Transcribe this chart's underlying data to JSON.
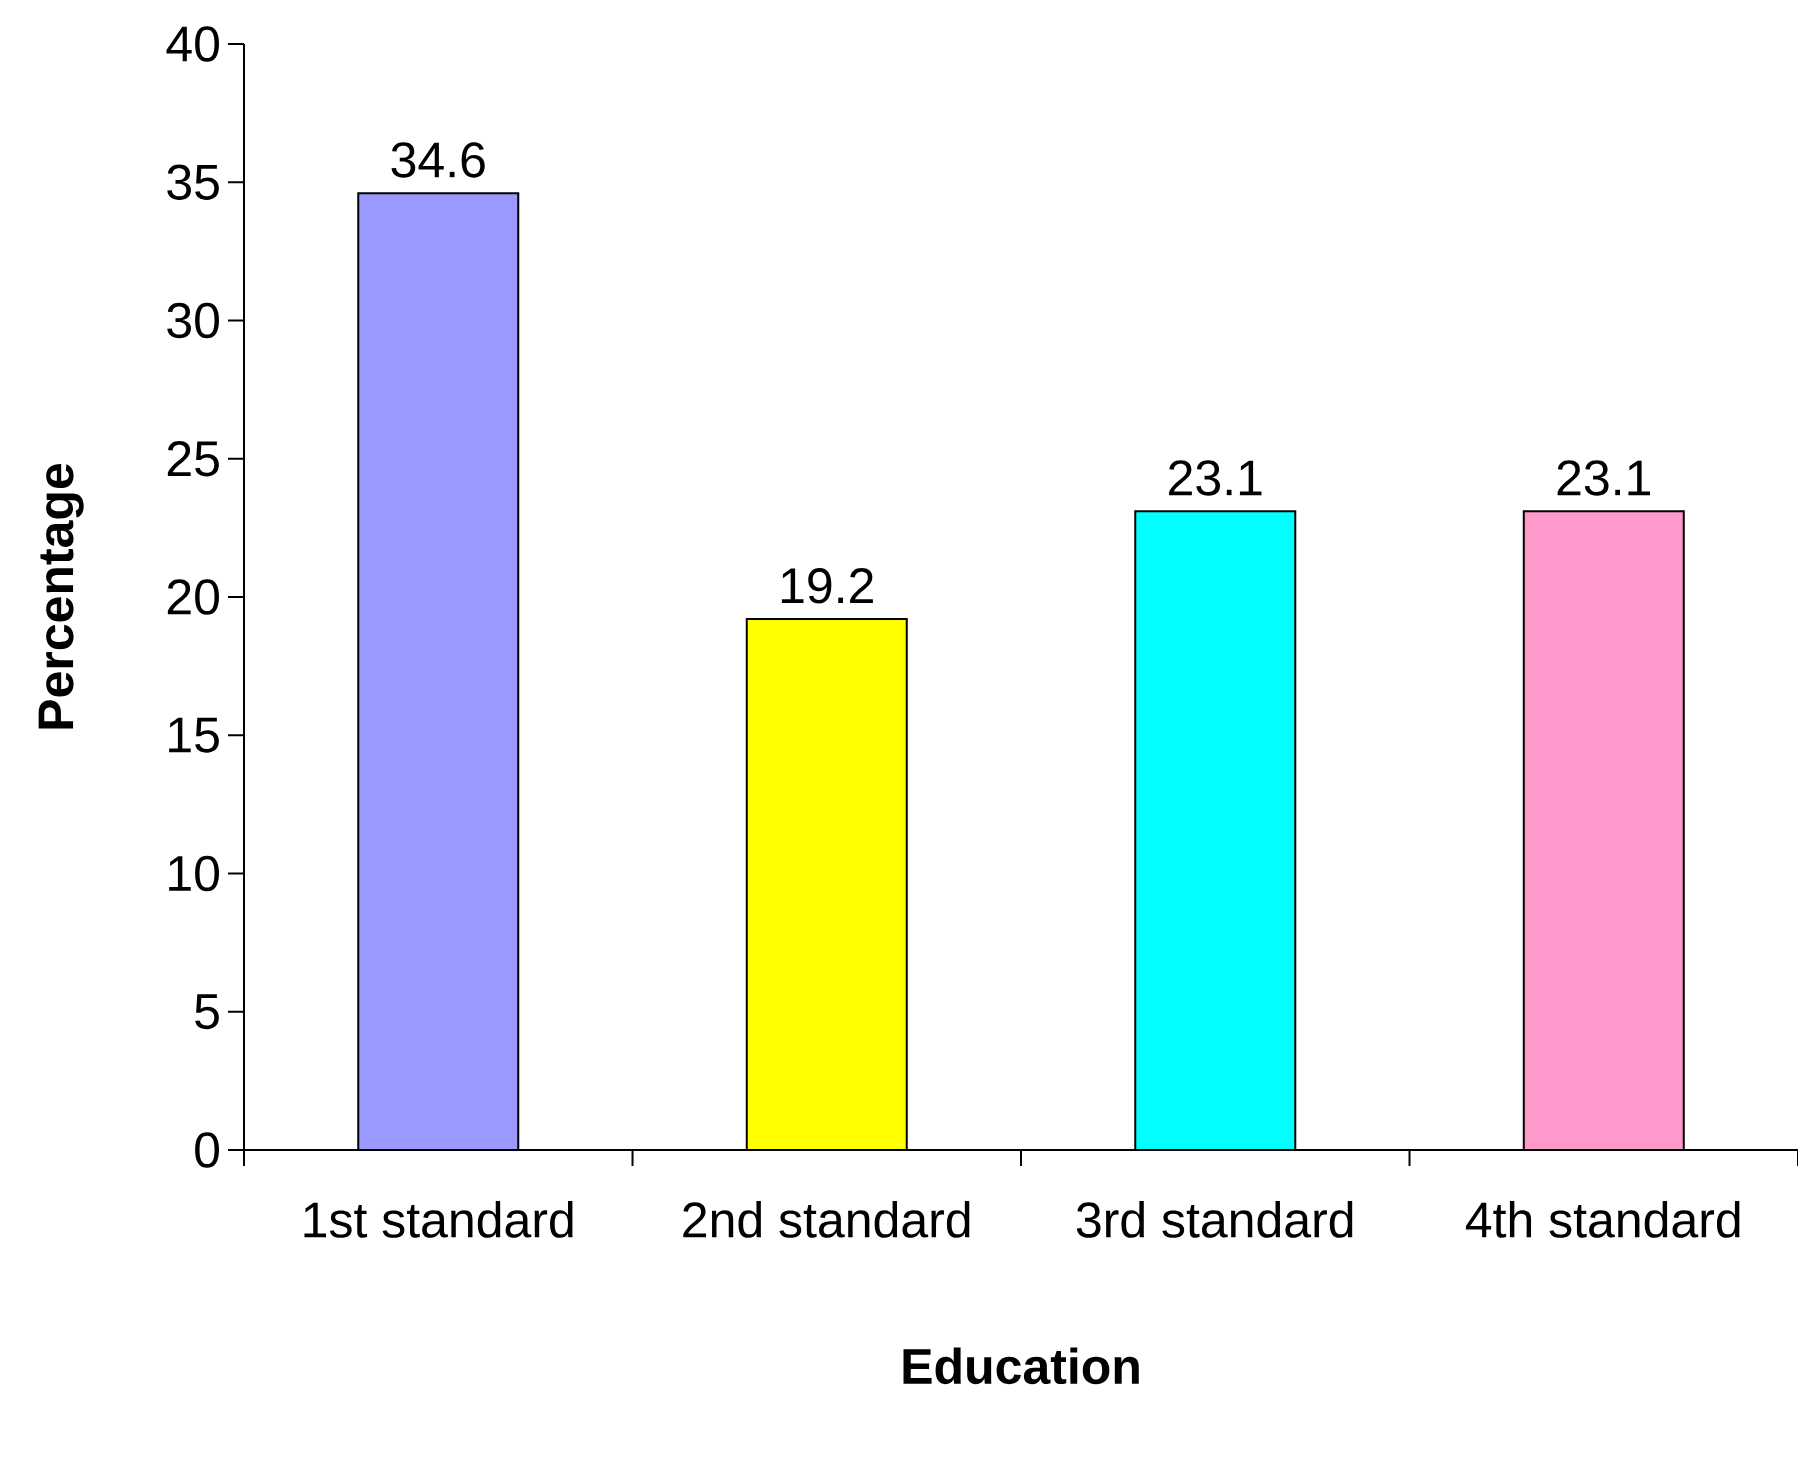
{
  "chart_data": {
    "type": "bar",
    "xlabel": "Education",
    "ylabel": "Percentage",
    "categories": [
      "1st standard",
      "2nd standard",
      "3rd standard",
      "4th standard"
    ],
    "values": [
      34.6,
      19.2,
      23.1,
      23.1
    ],
    "colors": [
      "#9999ff",
      "#ffff00",
      "#00ffff",
      "#ff99cc"
    ],
    "ylim": [
      0,
      40
    ],
    "yticks": [
      0,
      5,
      10,
      15,
      20,
      25,
      30,
      35,
      40
    ],
    "data_labels": true
  }
}
